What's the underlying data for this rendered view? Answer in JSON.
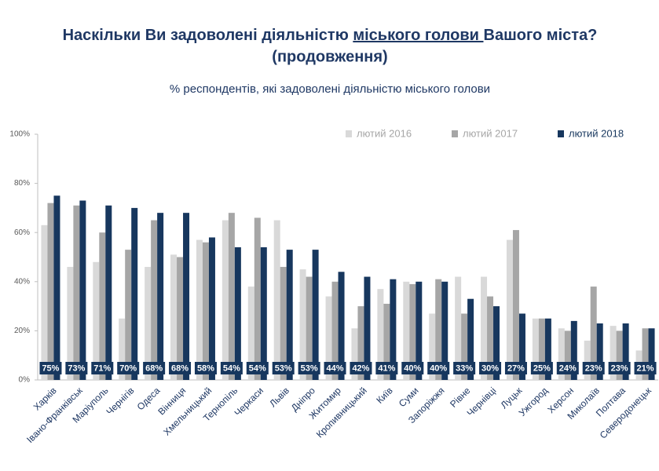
{
  "chart_data": {
    "type": "bar",
    "title_parts": [
      "Наскільки Ви задоволені діяльністю ",
      "міського голови ",
      "Вашого міста?"
    ],
    "title_line2": "(продовження)",
    "subtitle": "% респондентів, які задоволені діяльністю міського голови",
    "categories": [
      "Харків",
      "Івано-Франківськ",
      "Маріуполь",
      "Чернігів",
      "Одеса",
      "Вінниця",
      "Хмельницький",
      "Тернопіль",
      "Черкаси",
      "Львів",
      "Дніпро",
      "Житомир",
      "Кропивницький",
      "Київ",
      "Суми",
      "Запоріжжя",
      "Рівне",
      "Чернівці",
      "Луцьк",
      "Ужгород",
      "Херсон",
      "Миколаїв",
      "Полтава",
      "Северодонецьк"
    ],
    "series": [
      {
        "name": "лютий 2016",
        "color": "#d9d9d9",
        "values": [
          63,
          46,
          48,
          25,
          46,
          51,
          57,
          65,
          38,
          65,
          45,
          34,
          21,
          37,
          40,
          27,
          42,
          42,
          57,
          25,
          21,
          16,
          22,
          12
        ]
      },
      {
        "name": "лютий 2017",
        "color": "#a6a6a6",
        "values": [
          72,
          71,
          60,
          53,
          65,
          50,
          56,
          68,
          66,
          46,
          42,
          40,
          30,
          31,
          39,
          41,
          27,
          34,
          61,
          25,
          20,
          38,
          20,
          21
        ]
      },
      {
        "name": "лютий 2018",
        "color": "#17375e",
        "values": [
          75,
          73,
          71,
          70,
          68,
          68,
          58,
          54,
          54,
          53,
          53,
          44,
          42,
          41,
          40,
          40,
          33,
          30,
          27,
          25,
          24,
          23,
          23,
          21
        ],
        "value_labels": [
          "75%",
          "73%",
          "71%",
          "70%",
          "68%",
          "68%",
          "58%",
          "54%",
          "54%",
          "53%",
          "53%",
          "44%",
          "42%",
          "41%",
          "40%",
          "40%",
          "33%",
          "30%",
          "27%",
          "25%",
          "24%",
          "23%",
          "23%",
          "21%"
        ]
      }
    ],
    "ylim": [
      0,
      100
    ],
    "yticks": [
      {
        "value": 0,
        "label": "0%"
      },
      {
        "value": 20,
        "label": "20%"
      },
      {
        "value": 40,
        "label": "40%"
      },
      {
        "value": 60,
        "label": "60%"
      },
      {
        "value": 80,
        "label": "80%"
      },
      {
        "value": 100,
        "label": "100%"
      }
    ],
    "grid": false
  }
}
